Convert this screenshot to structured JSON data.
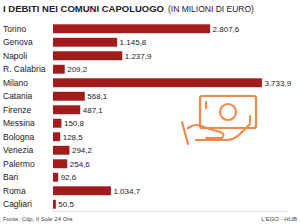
{
  "chart_data": {
    "type": "bar",
    "orientation": "horizontal",
    "title": "I DEBITI NEI COMUNI CAPOLUOGO",
    "subtitle": "(IN MILIONI DI EURO)",
    "categories": [
      "Torino",
      "Genova",
      "Napoli",
      "R. Calabria",
      "Milano",
      "Catania",
      "Firenze",
      "Messina",
      "Bologna",
      "Venezia",
      "Palermo",
      "Bari",
      "Roma",
      "Cagliari"
    ],
    "values": [
      2807.6,
      1145.8,
      1237.9,
      209.2,
      3733.9,
      568.1,
      487.1,
      150.8,
      128.5,
      294.2,
      254.6,
      92.6,
      1034.7,
      50.5
    ],
    "value_labels": [
      "2.807,6",
      "1.145,8",
      "1.237,9",
      "209,2",
      "3.733,9",
      "568,1",
      "487,1",
      "150,8",
      "128,5",
      "294,2",
      "254,6",
      "92,6",
      "1.034,7",
      "50,5"
    ],
    "color": "#a31c1c",
    "xlim": [
      0,
      4200
    ],
    "data_labels": true,
    "tick_labels": false,
    "grid": false,
    "source": "Fonte: Cdp, Il Sole 24 Ore",
    "credit": "L'EGO - HUB"
  }
}
